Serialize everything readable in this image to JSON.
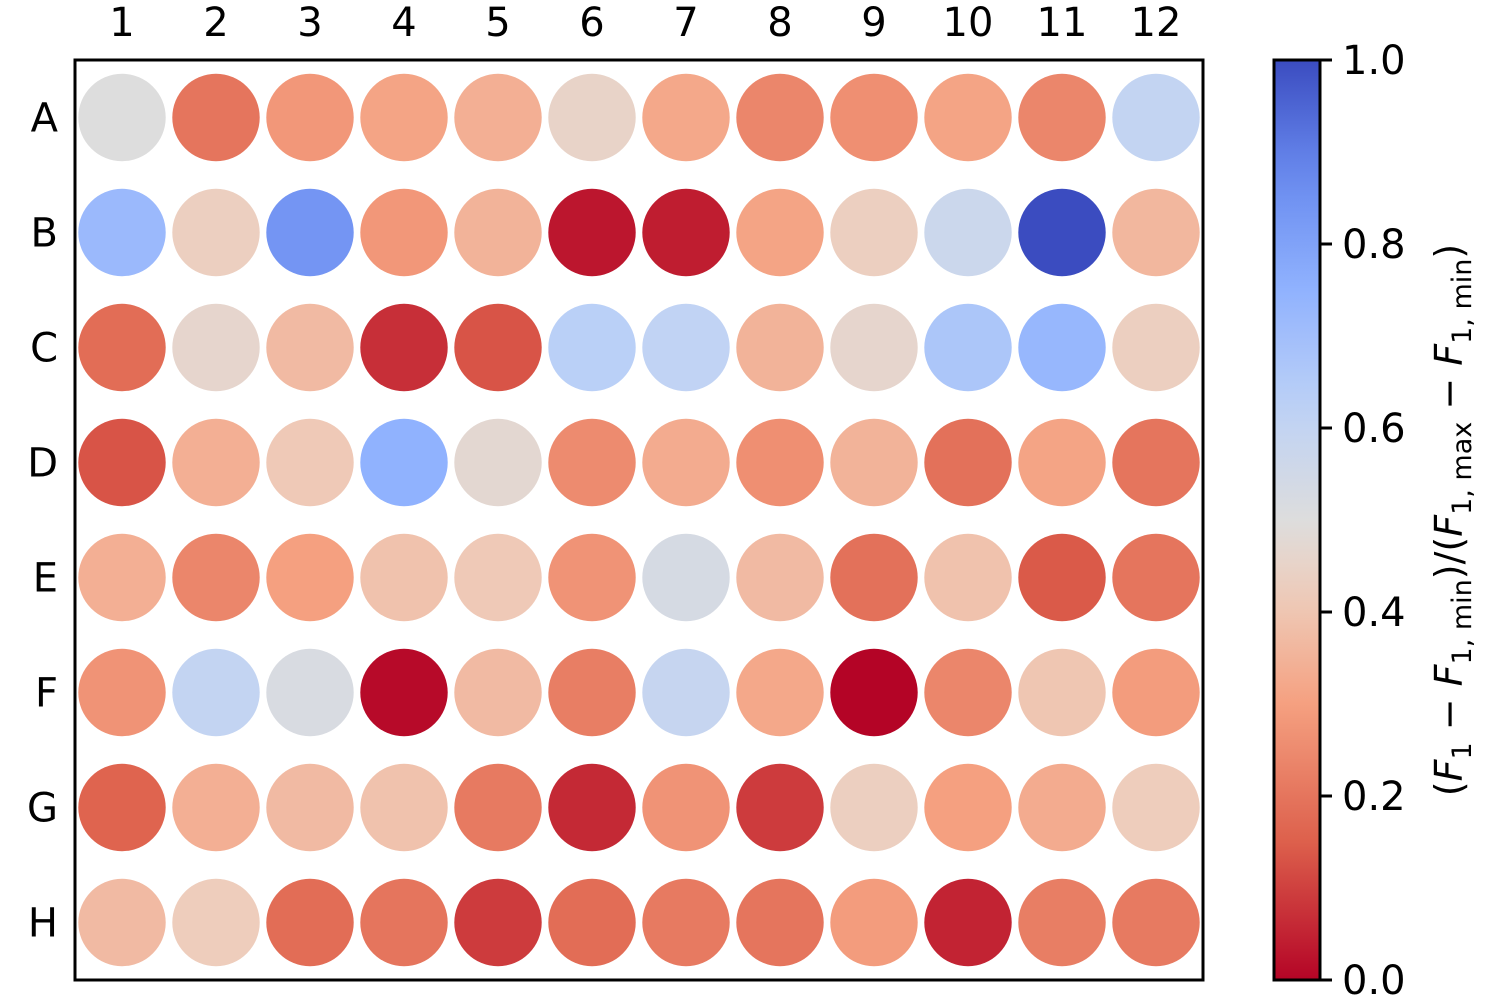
{
  "chart_data": {
    "type": "heatmap",
    "subtype": "well-plate",
    "rows": [
      "A",
      "B",
      "C",
      "D",
      "E",
      "F",
      "G",
      "H"
    ],
    "columns": [
      "1",
      "2",
      "3",
      "4",
      "5",
      "6",
      "7",
      "8",
      "9",
      "10",
      "11",
      "12"
    ],
    "values": [
      [
        0.5,
        0.2,
        0.28,
        0.31,
        0.34,
        0.45,
        0.32,
        0.24,
        0.26,
        0.31,
        0.24,
        0.6
      ],
      [
        0.72,
        0.43,
        0.84,
        0.28,
        0.35,
        0.03,
        0.04,
        0.31,
        0.43,
        0.57,
        1.0,
        0.36
      ],
      [
        0.18,
        0.46,
        0.37,
        0.07,
        0.13,
        0.63,
        0.61,
        0.35,
        0.46,
        0.67,
        0.73,
        0.43
      ],
      [
        0.13,
        0.34,
        0.41,
        0.75,
        0.47,
        0.25,
        0.33,
        0.26,
        0.35,
        0.19,
        0.31,
        0.2
      ],
      [
        0.34,
        0.24,
        0.3,
        0.39,
        0.41,
        0.27,
        0.53,
        0.37,
        0.19,
        0.39,
        0.14,
        0.2
      ],
      [
        0.27,
        0.6,
        0.52,
        0.01,
        0.37,
        0.22,
        0.59,
        0.32,
        0.0,
        0.24,
        0.4,
        0.29
      ],
      [
        0.16,
        0.34,
        0.37,
        0.39,
        0.21,
        0.06,
        0.27,
        0.09,
        0.43,
        0.3,
        0.33,
        0.42
      ],
      [
        0.37,
        0.42,
        0.18,
        0.2,
        0.09,
        0.18,
        0.21,
        0.2,
        0.29,
        0.05,
        0.22,
        0.21
      ]
    ],
    "colorbar": {
      "min": 0.0,
      "max": 1.0,
      "ticks": [
        "0.0",
        "0.2",
        "0.4",
        "0.6",
        "0.8",
        "1.0"
      ],
      "label_parts": [
        "(",
        "F",
        "1",
        " − ",
        "F",
        "1, min",
        ")/(",
        "F",
        "1, max",
        " − ",
        "F",
        "1, min",
        ")"
      ],
      "colormap": "coolwarm_r"
    },
    "x_tick_position": "top",
    "grid": false
  }
}
